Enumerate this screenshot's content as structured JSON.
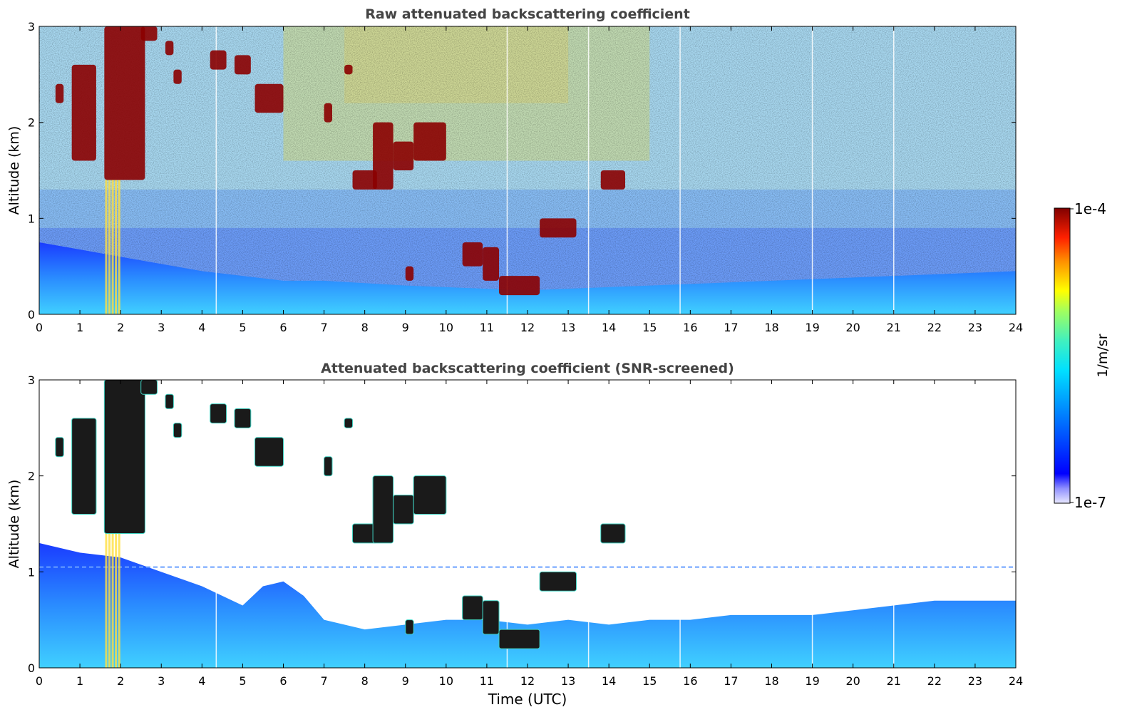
{
  "chart_data": [
    {
      "type": "heatmap",
      "title": "Raw attenuated backscattering coefficient",
      "xlabel": "",
      "ylabel": "Altitude (km)",
      "xlim": [
        0,
        24
      ],
      "ylim": [
        0,
        3
      ],
      "x_ticks": [
        "0",
        "1",
        "2",
        "3",
        "4",
        "5",
        "6",
        "7",
        "8",
        "9",
        "10",
        "11",
        "12",
        "13",
        "14",
        "15",
        "16",
        "17",
        "18",
        "19",
        "20",
        "21",
        "22",
        "23",
        "24"
      ],
      "y_ticks": [
        "0",
        "1",
        "2",
        "3"
      ],
      "features": {
        "boundary_layer_top_km": [
          [
            0,
            0.75
          ],
          [
            2,
            0.6
          ],
          [
            4,
            0.45
          ],
          [
            6,
            0.35
          ],
          [
            7,
            0.35
          ],
          [
            9,
            0.3
          ],
          [
            12,
            0.25
          ],
          [
            15,
            0.3
          ],
          [
            18,
            0.35
          ],
          [
            21,
            0.4
          ],
          [
            24,
            0.45
          ]
        ],
        "vertical_streaks_hours": [
          1.62,
          1.7,
          1.78,
          1.86,
          1.94
        ],
        "data_gaps_hours": [
          4.35,
          11.5,
          13.5,
          15.75,
          19.0,
          21.0
        ],
        "cloud_layers": [
          {
            "time": [
              0.4,
              0.6
            ],
            "altitude_km": [
              2.2,
              2.4
            ]
          },
          {
            "time": [
              0.8,
              1.4
            ],
            "altitude_km": [
              1.6,
              2.6
            ]
          },
          {
            "time": [
              1.6,
              2.6
            ],
            "altitude_km": [
              1.4,
              3.0
            ]
          },
          {
            "time": [
              2.5,
              2.9
            ],
            "altitude_km": [
              2.85,
              3.0
            ]
          },
          {
            "time": [
              3.1,
              3.3
            ],
            "altitude_km": [
              2.7,
              2.85
            ]
          },
          {
            "time": [
              3.3,
              3.5
            ],
            "altitude_km": [
              2.4,
              2.55
            ]
          },
          {
            "time": [
              4.2,
              4.6
            ],
            "altitude_km": [
              2.55,
              2.75
            ]
          },
          {
            "time": [
              4.8,
              5.2
            ],
            "altitude_km": [
              2.5,
              2.7
            ]
          },
          {
            "time": [
              5.3,
              6.0
            ],
            "altitude_km": [
              2.1,
              2.4
            ]
          },
          {
            "time": [
              7.0,
              7.2
            ],
            "altitude_km": [
              2.0,
              2.2
            ]
          },
          {
            "time": [
              7.5,
              7.7
            ],
            "altitude_km": [
              2.5,
              2.6
            ]
          },
          {
            "time": [
              7.7,
              8.3
            ],
            "altitude_km": [
              1.3,
              1.5
            ]
          },
          {
            "time": [
              8.2,
              8.7
            ],
            "altitude_km": [
              1.3,
              2.0
            ]
          },
          {
            "time": [
              8.7,
              9.2
            ],
            "altitude_km": [
              1.5,
              1.8
            ]
          },
          {
            "time": [
              9.2,
              10.0
            ],
            "altitude_km": [
              1.6,
              2.0
            ]
          },
          {
            "time": [
              9.0,
              9.2
            ],
            "altitude_km": [
              0.35,
              0.5
            ]
          },
          {
            "time": [
              10.4,
              10.9
            ],
            "altitude_km": [
              0.5,
              0.75
            ]
          },
          {
            "time": [
              10.9,
              11.3
            ],
            "altitude_km": [
              0.35,
              0.7
            ]
          },
          {
            "time": [
              11.3,
              12.3
            ],
            "altitude_km": [
              0.2,
              0.4
            ]
          },
          {
            "time": [
              12.3,
              13.2
            ],
            "altitude_km": [
              0.8,
              1.0
            ]
          },
          {
            "time": [
              13.8,
              14.4
            ],
            "altitude_km": [
              1.3,
              1.5
            ]
          }
        ]
      }
    },
    {
      "type": "heatmap",
      "title": "Attenuated backscattering coefficient (SNR-screened)",
      "xlabel": "Time (UTC)",
      "ylabel": "Altitude (km)",
      "xlim": [
        0,
        24
      ],
      "ylim": [
        0,
        3
      ],
      "x_ticks": [
        "0",
        "1",
        "2",
        "3",
        "4",
        "5",
        "6",
        "7",
        "8",
        "9",
        "10",
        "11",
        "12",
        "13",
        "14",
        "15",
        "16",
        "17",
        "18",
        "19",
        "20",
        "21",
        "22",
        "23",
        "24"
      ],
      "y_ticks": [
        "0",
        "1",
        "2",
        "3"
      ],
      "features": {
        "valid_data_top_km": [
          [
            0,
            1.3
          ],
          [
            1,
            1.2
          ],
          [
            2,
            1.15
          ],
          [
            3,
            1.0
          ],
          [
            4,
            0.85
          ],
          [
            5,
            0.65
          ],
          [
            5.5,
            0.85
          ],
          [
            6,
            0.9
          ],
          [
            6.5,
            0.75
          ],
          [
            7,
            0.5
          ],
          [
            8,
            0.4
          ],
          [
            9,
            0.45
          ],
          [
            10,
            0.5
          ],
          [
            11,
            0.5
          ],
          [
            12,
            0.45
          ],
          [
            13,
            0.5
          ],
          [
            14,
            0.45
          ],
          [
            15,
            0.5
          ],
          [
            16,
            0.5
          ],
          [
            17,
            0.55
          ],
          [
            18,
            0.55
          ],
          [
            19,
            0.55
          ],
          [
            20,
            0.6
          ],
          [
            21,
            0.65
          ],
          [
            22,
            0.7
          ],
          [
            23,
            0.7
          ],
          [
            24,
            0.7
          ]
        ],
        "horizontal_artifact_km": 1.05
      }
    }
  ],
  "colorbar": {
    "max_label": "1e-4",
    "min_label": "1e-7",
    "unit_label": "1/m/sr",
    "scale": "log",
    "colormap": "jet"
  },
  "colors": {
    "deep_blue": "#0010ff",
    "cyan": "#00d8ff",
    "green": "#4ee0a0",
    "yellow": "#f0e040",
    "dark_red": "#8b0000",
    "noise_light": "#a8d8f0",
    "text_gray": "#444444"
  }
}
